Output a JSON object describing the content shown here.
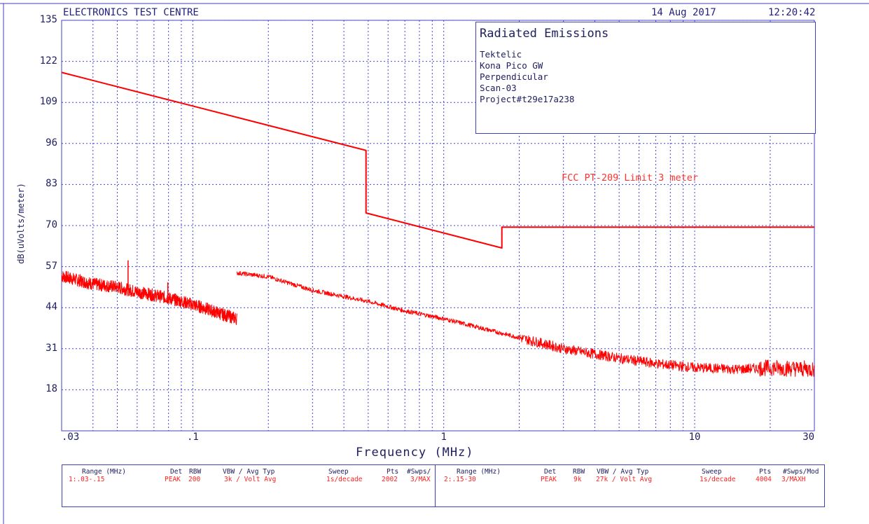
{
  "header": {
    "lab": "ELECTRONICS TEST CENTRE",
    "date": "14 Aug 2017",
    "time": "12:20:42"
  },
  "info": {
    "title": "Radiated Emissions",
    "lines": [
      "Tektelic",
      "Kona Pico GW",
      "Perpendicular",
      "Scan-03",
      "Project#t29e17a238"
    ]
  },
  "limit_label": "FCC PT-209 Limit 3 meter",
  "colors": {
    "trace": "#ff0000",
    "grid": "#4444dd",
    "text": "#202060",
    "limit_text": "#ff3030"
  },
  "chart_data": {
    "type": "line",
    "xlabel": "Frequency (MHz)",
    "ylabel": "dB(uVolts/meter)",
    "x_scale": "log",
    "xlim": [
      0.03,
      30
    ],
    "ylim": [
      5,
      135
    ],
    "y_ticks": [
      "135",
      "122",
      "109",
      "96",
      "83",
      "70",
      "57",
      "44",
      "31",
      "18"
    ],
    "x_ticks": [
      {
        "value": 0.03,
        "label": ".03"
      },
      {
        "value": 0.1,
        "label": ".1"
      },
      {
        "value": 1,
        "label": "1"
      },
      {
        "value": 10,
        "label": "10"
      },
      {
        "value": 30,
        "label": "30"
      }
    ],
    "grid": true,
    "series": [
      {
        "name": "FCC PT-209 Limit 3 meter",
        "role": "limit",
        "points": [
          [
            0.03,
            118.5
          ],
          [
            0.49,
            93.8
          ],
          [
            0.49,
            74.0
          ],
          [
            1.705,
            62.9
          ],
          [
            1.705,
            69.5
          ],
          [
            30,
            69.5
          ]
        ]
      },
      {
        "role": "measurement-range-1",
        "points": [
          [
            0.03,
            54
          ],
          [
            0.04,
            51.5
          ],
          [
            0.05,
            50.5
          ],
          [
            0.06,
            49
          ],
          [
            0.075,
            47.5
          ],
          [
            0.09,
            46
          ],
          [
            0.11,
            44
          ],
          [
            0.13,
            42
          ],
          [
            0.15,
            40.5
          ]
        ],
        "peaks": [
          [
            0.0552,
            59
          ],
          [
            0.0795,
            52
          ]
        ],
        "noise": 2.0
      },
      {
        "role": "measurement-range-2",
        "points": [
          [
            0.15,
            55
          ],
          [
            0.2,
            53.8
          ],
          [
            0.3,
            49.5
          ],
          [
            0.5,
            46
          ],
          [
            0.7,
            43
          ],
          [
            1,
            40.5
          ],
          [
            1.5,
            37
          ],
          [
            2,
            34.5
          ],
          [
            3,
            31
          ],
          [
            5,
            28
          ],
          [
            7,
            26.3
          ],
          [
            10,
            25
          ],
          [
            15,
            24.5
          ],
          [
            20,
            25
          ],
          [
            30,
            24.5
          ]
        ],
        "noise": 1.6,
        "noise_start": 2
      }
    ]
  },
  "sweep_table": {
    "headers": [
      "Range (MHz)",
      "Det",
      "RBW",
      "VBW / Avg Typ",
      "Sweep",
      "Pts",
      "#Swps/",
      "Range (MHz)",
      "Det",
      "RBW",
      "VBW / Avg Typ",
      "Sweep",
      "Pts",
      "#Swps/Mod"
    ],
    "row1": [
      "1:.03-.15",
      "PEAK",
      "200",
      "3k / Volt Avg",
      "1s/decade",
      "2002",
      "3/MAX"
    ],
    "row2": [
      "2:.15-30",
      "PEAK",
      "9k",
      "27k / Volt Avg",
      "1s/decade",
      "4004",
      "3/MAXH"
    ]
  }
}
